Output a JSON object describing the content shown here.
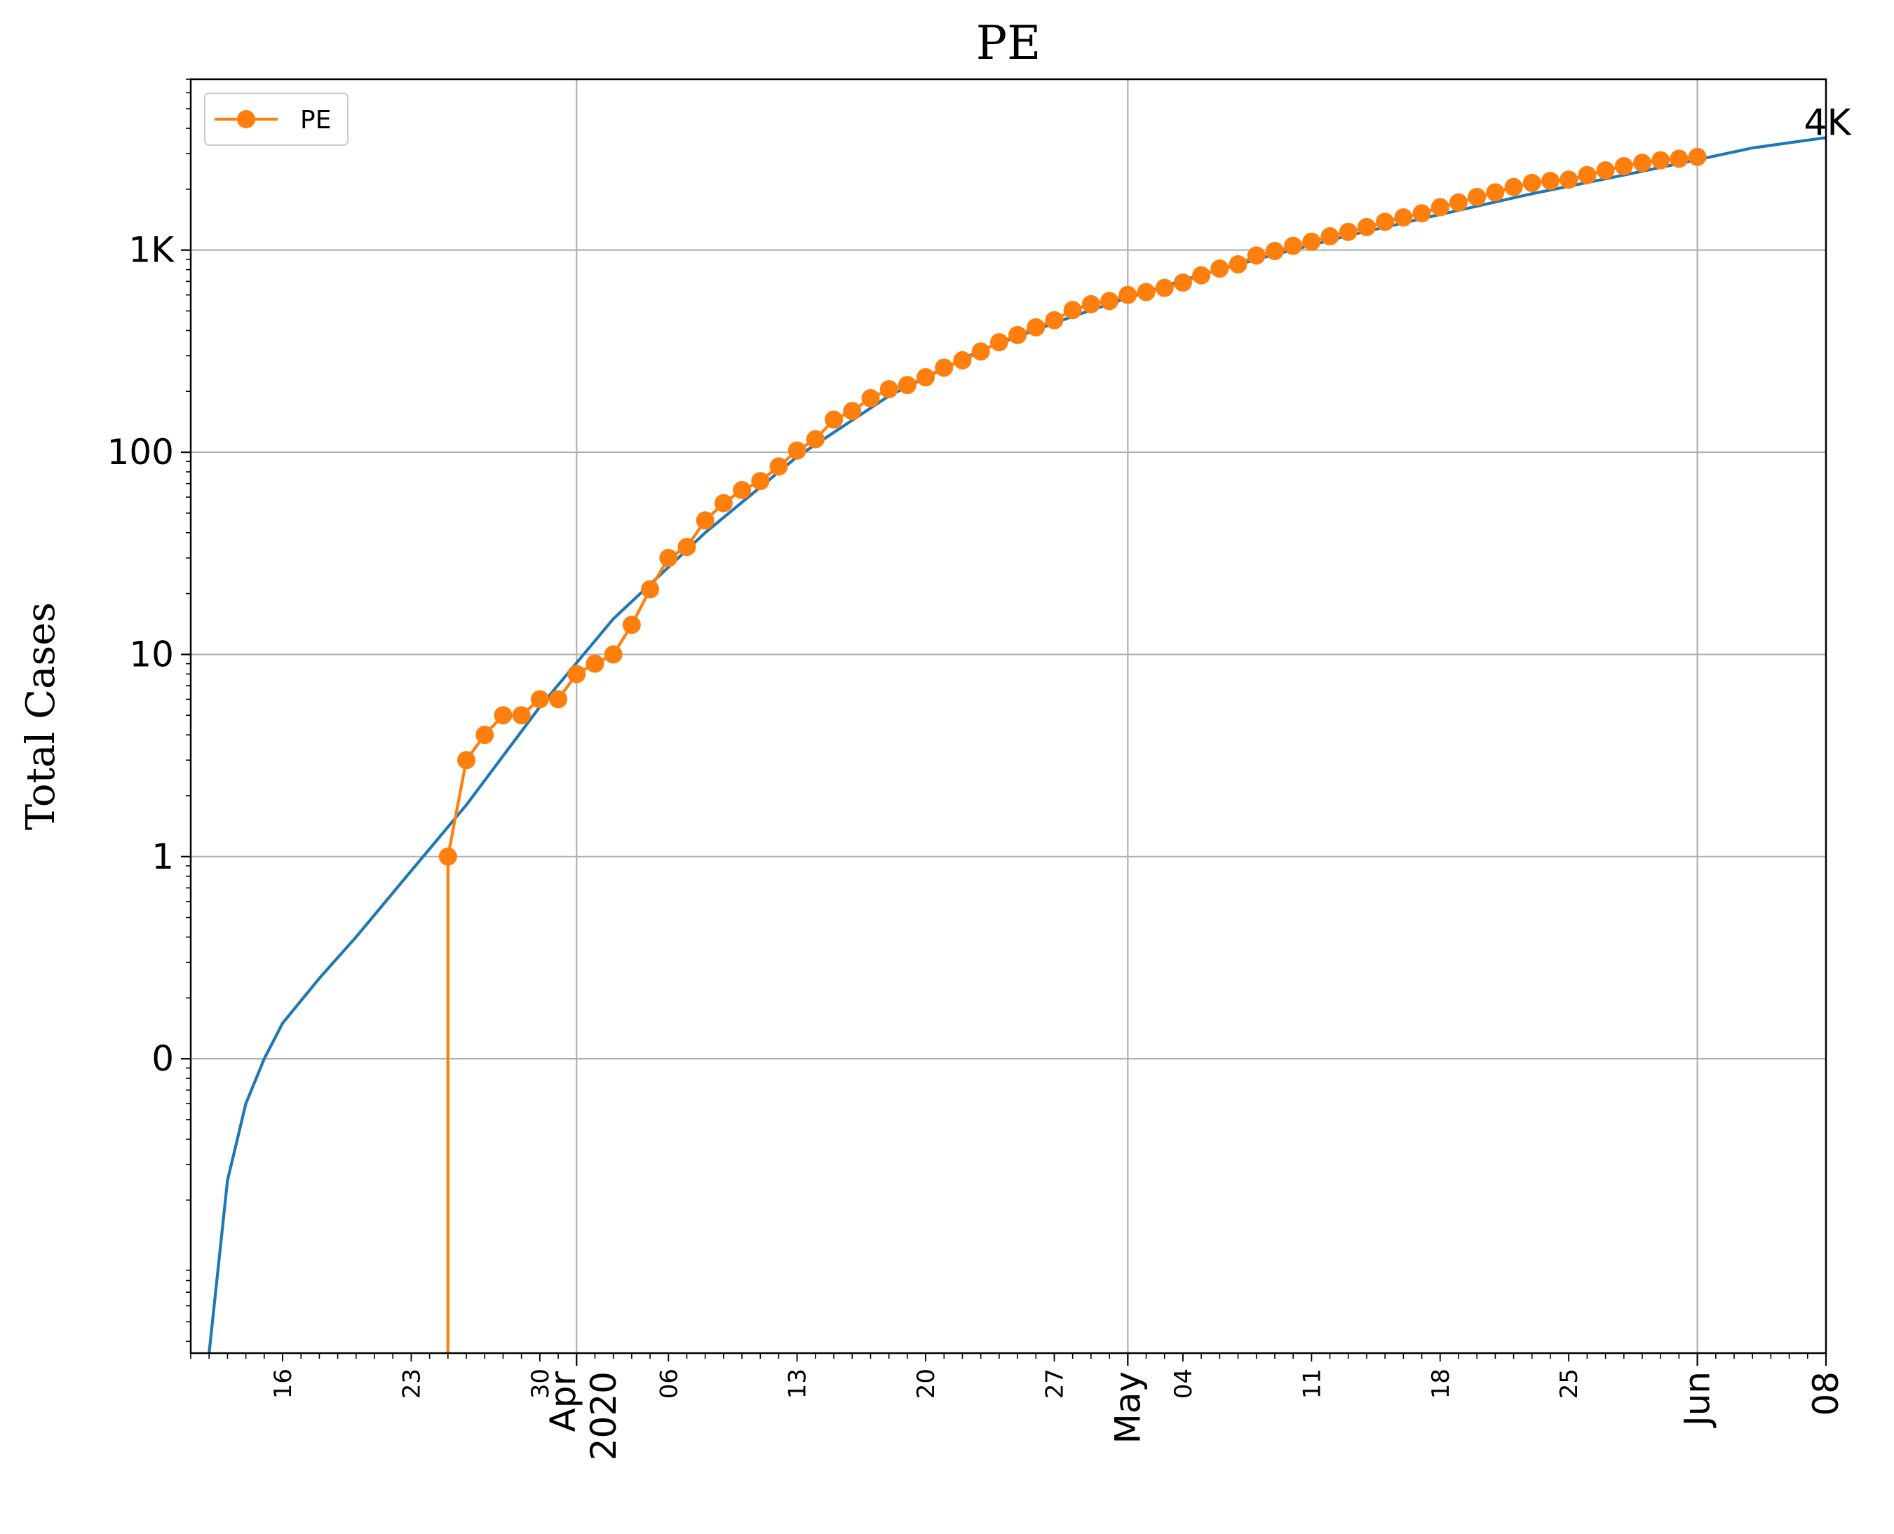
{
  "chart_data": {
    "type": "line",
    "title": "PE",
    "xlabel": "",
    "ylabel": "Total Cases",
    "yscale": "log",
    "grid": true,
    "legend_placement": "top-left",
    "x_range": [
      "2020-03-11",
      "2020-06-08"
    ],
    "y_range": [
      0.0035,
      7000
    ],
    "y_ticks": [
      {
        "value": 0.1,
        "label": "0"
      },
      {
        "value": 1,
        "label": "1"
      },
      {
        "value": 10,
        "label": "10"
      },
      {
        "value": 100,
        "label": "100"
      },
      {
        "value": 1000,
        "label": "1K"
      }
    ],
    "x_minor_ticks": [
      {
        "date": "2020-03-16",
        "label": "16"
      },
      {
        "date": "2020-03-23",
        "label": "23"
      },
      {
        "date": "2020-03-30",
        "label": "30"
      },
      {
        "date": "2020-04-06",
        "label": "06"
      },
      {
        "date": "2020-04-13",
        "label": "13"
      },
      {
        "date": "2020-04-20",
        "label": "20"
      },
      {
        "date": "2020-04-27",
        "label": "27"
      },
      {
        "date": "2020-05-04",
        "label": "04"
      },
      {
        "date": "2020-05-11",
        "label": "11"
      },
      {
        "date": "2020-05-18",
        "label": "18"
      },
      {
        "date": "2020-05-25",
        "label": "25"
      }
    ],
    "x_major_ticks": [
      {
        "date": "2020-04-01",
        "label": "Apr\n2020"
      },
      {
        "date": "2020-05-01",
        "label": "May"
      },
      {
        "date": "2020-06-01",
        "label": "Jun"
      },
      {
        "date": "2020-06-08",
        "label": "08"
      }
    ],
    "annotations": [
      {
        "text": "4K",
        "date": "2020-06-08",
        "value": 3600
      }
    ],
    "series": [
      {
        "name": "",
        "color": "#1f77b4",
        "marker": "none",
        "x": [
          "2020-03-12",
          "2020-03-13",
          "2020-03-14",
          "2020-03-15",
          "2020-03-16",
          "2020-03-18",
          "2020-03-20",
          "2020-03-23",
          "2020-03-26",
          "2020-03-30",
          "2020-04-03",
          "2020-04-08",
          "2020-04-13",
          "2020-04-18",
          "2020-04-23",
          "2020-04-28",
          "2020-05-01",
          "2020-05-04",
          "2020-05-08",
          "2020-05-13",
          "2020-05-18",
          "2020-05-23",
          "2020-05-28",
          "2020-06-01",
          "2020-06-04",
          "2020-06-08"
        ],
        "y": [
          0.0035,
          0.025,
          0.06,
          0.1,
          0.15,
          0.25,
          0.4,
          0.85,
          1.8,
          5.5,
          15,
          40,
          95,
          190,
          320,
          470,
          580,
          710,
          900,
          1180,
          1500,
          1900,
          2350,
          2800,
          3200,
          3600
        ]
      },
      {
        "name": "PE",
        "color": "#ff7f0e",
        "marker": "circle",
        "x": [
          "2020-03-25",
          "2020-03-25",
          "2020-03-26",
          "2020-03-27",
          "2020-03-28",
          "2020-03-29",
          "2020-03-30",
          "2020-03-31",
          "2020-04-01",
          "2020-04-02",
          "2020-04-03",
          "2020-04-04",
          "2020-04-05",
          "2020-04-06",
          "2020-04-07",
          "2020-04-08",
          "2020-04-09",
          "2020-04-10",
          "2020-04-11",
          "2020-04-12",
          "2020-04-13",
          "2020-04-14",
          "2020-04-15",
          "2020-04-16",
          "2020-04-17",
          "2020-04-18",
          "2020-04-19",
          "2020-04-20",
          "2020-04-21",
          "2020-04-22",
          "2020-04-23",
          "2020-04-24",
          "2020-04-25",
          "2020-04-26",
          "2020-04-27",
          "2020-04-28",
          "2020-04-29",
          "2020-04-30",
          "2020-05-01",
          "2020-05-02",
          "2020-05-03",
          "2020-05-04",
          "2020-05-05",
          "2020-05-06",
          "2020-05-07",
          "2020-05-08",
          "2020-05-09",
          "2020-05-10",
          "2020-05-11",
          "2020-05-12",
          "2020-05-13",
          "2020-05-14",
          "2020-05-15",
          "2020-05-16",
          "2020-05-17",
          "2020-05-18",
          "2020-05-19",
          "2020-05-20",
          "2020-05-21",
          "2020-05-22",
          "2020-05-23",
          "2020-05-24",
          "2020-05-25",
          "2020-05-26",
          "2020-05-27",
          "2020-05-28",
          "2020-05-29",
          "2020-05-30",
          "2020-05-31",
          "2020-06-01"
        ],
        "y": [
          0.0035,
          1,
          3,
          4,
          5,
          5,
          6,
          6,
          8,
          9,
          10,
          14,
          21,
          30,
          34,
          46,
          56,
          65,
          72,
          85,
          102,
          116,
          145,
          160,
          185,
          205,
          215,
          235,
          262,
          285,
          315,
          350,
          380,
          415,
          450,
          505,
          540,
          560,
          600,
          620,
          650,
          690,
          750,
          810,
          850,
          940,
          990,
          1050,
          1100,
          1170,
          1230,
          1300,
          1380,
          1450,
          1520,
          1630,
          1720,
          1830,
          1930,
          2050,
          2150,
          2200,
          2230,
          2350,
          2480,
          2600,
          2700,
          2780,
          2830,
          2890
        ]
      }
    ]
  }
}
